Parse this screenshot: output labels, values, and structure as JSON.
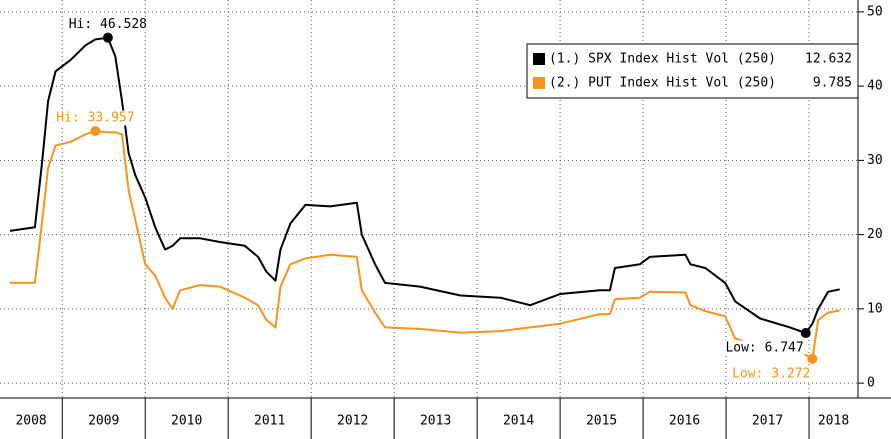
{
  "chart_data": {
    "type": "line",
    "x": [
      2008.37,
      2008.67,
      2008.76,
      2008.83,
      2008.92,
      2009.1,
      2009.28,
      2009.4,
      2009.55,
      2009.64,
      2009.72,
      2009.8,
      2009.88,
      2010.0,
      2010.12,
      2010.24,
      2010.33,
      2010.42,
      2010.66,
      2010.9,
      2011.2,
      2011.36,
      2011.46,
      2011.57,
      2011.63,
      2011.75,
      2011.93,
      2012.23,
      2012.55,
      2012.61,
      2012.77,
      2012.89,
      2013.31,
      2013.8,
      2014.28,
      2014.64,
      2015.0,
      2015.48,
      2015.6,
      2015.66,
      2015.96,
      2016.08,
      2016.51,
      2016.57,
      2016.75,
      2016.99,
      2017.11,
      2017.41,
      2017.77,
      2017.96,
      2018.04,
      2018.11,
      2018.23,
      2018.37
    ],
    "series": [
      {
        "name": "(1.) SPX Index Hist Vol (250)",
        "color": "#000000",
        "values": [
          20.5,
          21,
          30,
          38,
          42,
          43.5,
          45.5,
          46.3,
          46.528,
          44,
          38,
          31,
          28,
          25,
          21,
          18,
          18.5,
          19.5,
          19.5,
          19,
          18.5,
          17,
          15,
          13.8,
          18,
          21.5,
          24,
          23.8,
          24.3,
          20,
          16,
          13.5,
          13,
          11.8,
          11.5,
          10.5,
          12,
          12.5,
          12.5,
          15.5,
          16,
          17,
          17.3,
          16,
          15.5,
          13.5,
          11,
          8.7,
          7.5,
          6.747,
          8,
          10,
          12.3,
          12.632
        ]
      },
      {
        "name": "(2.) PUT Index Hist Vol (250)",
        "color": "#f7941d",
        "values": [
          13.5,
          13.5,
          22,
          29,
          32,
          32.5,
          33.5,
          33.957,
          33.8,
          33.8,
          33.5,
          26,
          22,
          16,
          14.5,
          11.5,
          10,
          12.5,
          13.2,
          13,
          11.5,
          10.5,
          8.5,
          7.5,
          13,
          16,
          16.8,
          17.3,
          17,
          12.5,
          9.5,
          7.5,
          7.3,
          6.8,
          7,
          7.5,
          8,
          9.3,
          9.3,
          11.3,
          11.5,
          12.3,
          12.2,
          10.5,
          9.7,
          9,
          6,
          5,
          4,
          3.8,
          3.272,
          8.5,
          9.5,
          9.785
        ]
      }
    ],
    "annotations": [
      {
        "label": "Hi: 46.528",
        "x": 2009.55,
        "y": 46.528,
        "series": 0,
        "side": "above"
      },
      {
        "label": "Hi: 33.957",
        "x": 2009.4,
        "y": 33.957,
        "series": 1,
        "side": "above"
      },
      {
        "label": "Low: 6.747",
        "x": 2017.96,
        "y": 6.747,
        "series": 0,
        "side": "below"
      },
      {
        "label": "Low: 3.272",
        "x": 2018.04,
        "y": 3.272,
        "series": 1,
        "side": "below"
      }
    ],
    "xlim": [
      2008.25,
      2018.59
    ],
    "xticks": [
      2008,
      2009,
      2010,
      2011,
      2012,
      2013,
      2014,
      2015,
      2016,
      2017,
      2018
    ],
    "ylim": [
      -1.6,
      51.6
    ],
    "yticks": [
      0,
      10,
      20,
      30,
      40,
      50
    ],
    "grid": true,
    "legend": "upper right"
  }
}
